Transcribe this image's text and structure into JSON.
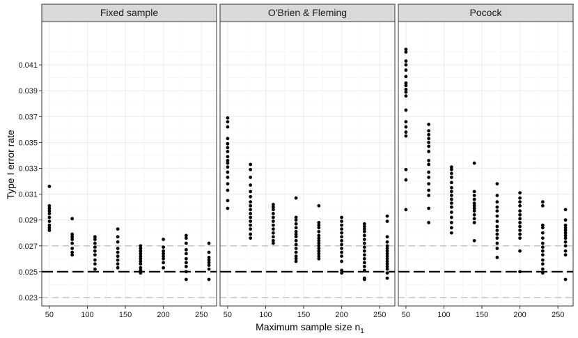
{
  "chart_data": {
    "type": "scatter",
    "facet_titles": [
      "Fixed sample",
      "O'Brien & Fleming",
      "Pocock"
    ],
    "xlabel": "Maximum sample size n",
    "xlabel_subscript": "1",
    "ylabel": "Type I error rate",
    "xlim": [
      40,
      270
    ],
    "ylim": [
      0.02235,
      0.04435
    ],
    "x_ticks": [
      50,
      100,
      150,
      200,
      250
    ],
    "y_ticks": [
      0.023,
      0.025,
      0.027,
      0.029,
      0.031,
      0.033,
      0.035,
      0.037,
      0.039,
      0.041
    ],
    "y_tick_labels": [
      "0.023",
      "0.025",
      "0.027",
      "0.029",
      "0.031",
      "0.033",
      "0.035",
      "0.037",
      "0.039",
      "0.041"
    ],
    "reference_lines": [
      {
        "y": 0.025,
        "style": "dashed",
        "color": "#000000"
      },
      {
        "y": 0.023,
        "style": "dashed",
        "color": "#c8c8c8"
      },
      {
        "y": 0.027,
        "style": "dashed",
        "color": "#c8c8c8"
      }
    ],
    "grid": true,
    "colors": {
      "points": "#000000",
      "strip": "#d9d9d9",
      "panel_border": "#333333",
      "grid": "#ebebeb"
    },
    "panels": [
      {
        "title": "Fixed sample",
        "points": [
          {
            "x": 50,
            "y": [
              0.0316,
              0.0301,
              0.0299,
              0.0297,
              0.0295,
              0.0292,
              0.0289,
              0.0286,
              0.0284,
              0.0282
            ]
          },
          {
            "x": 80,
            "y": [
              0.0291,
              0.0279,
              0.0277,
              0.0275,
              0.0272,
              0.0268,
              0.0265,
              0.0263
            ]
          },
          {
            "x": 110,
            "y": [
              0.0277,
              0.0275,
              0.0272,
              0.0269,
              0.0266,
              0.0263,
              0.0259,
              0.0256,
              0.0252
            ]
          },
          {
            "x": 140,
            "y": [
              0.0283,
              0.0277,
              0.0273,
              0.0268,
              0.0265,
              0.0262,
              0.0259,
              0.0256,
              0.0253
            ]
          },
          {
            "x": 170,
            "y": [
              0.027,
              0.0268,
              0.0266,
              0.0264,
              0.0262,
              0.026,
              0.0258,
              0.0256,
              0.0253,
              0.0251,
              0.0249
            ]
          },
          {
            "x": 200,
            "y": [
              0.0275,
              0.0269,
              0.0266,
              0.0264,
              0.0262,
              0.026,
              0.0257,
              0.0253
            ]
          },
          {
            "x": 230,
            "y": [
              0.0278,
              0.0276,
              0.0272,
              0.0267,
              0.0264,
              0.026,
              0.0257,
              0.0254,
              0.025,
              0.0244
            ]
          },
          {
            "x": 260,
            "y": [
              0.0272,
              0.0265,
              0.0261,
              0.0259,
              0.0257,
              0.0255,
              0.0252,
              0.0244
            ]
          }
        ]
      },
      {
        "title": "O'Brien & Fleming",
        "points": [
          {
            "x": 50,
            "y": [
              0.0369,
              0.0366,
              0.0362,
              0.0353,
              0.0349,
              0.0346,
              0.0343,
              0.0339,
              0.0336,
              0.0334,
              0.0331,
              0.0327,
              0.0323,
              0.0318,
              0.0313,
              0.0305,
              0.0299
            ]
          },
          {
            "x": 80,
            "y": [
              0.0333,
              0.0329,
              0.0323,
              0.0317,
              0.0312,
              0.0308,
              0.0304,
              0.0301,
              0.0298,
              0.0295,
              0.0292,
              0.0289,
              0.0286,
              0.0283,
              0.0279,
              0.0276
            ]
          },
          {
            "x": 110,
            "y": [
              0.0302,
              0.03,
              0.0298,
              0.0295,
              0.0292,
              0.0289,
              0.0286,
              0.0283,
              0.028,
              0.0277,
              0.0274,
              0.0272
            ]
          },
          {
            "x": 140,
            "y": [
              0.0307,
              0.0292,
              0.029,
              0.0287,
              0.0284,
              0.0281,
              0.0279,
              0.0277,
              0.0274,
              0.0271,
              0.0268,
              0.0265,
              0.0262,
              0.026,
              0.0258
            ]
          },
          {
            "x": 170,
            "y": [
              0.0301,
              0.0288,
              0.0286,
              0.0284,
              0.0281,
              0.0278,
              0.0276,
              0.0274,
              0.0272,
              0.027,
              0.0268,
              0.0266,
              0.0264,
              0.0262,
              0.026
            ]
          },
          {
            "x": 200,
            "y": [
              0.0292,
              0.0289,
              0.0286,
              0.0283,
              0.028,
              0.0277,
              0.0274,
              0.0271,
              0.0268,
              0.0265,
              0.0262,
              0.0258,
              0.0251,
              0.0249
            ]
          },
          {
            "x": 230,
            "y": [
              0.0287,
              0.0285,
              0.0283,
              0.0281,
              0.0278,
              0.0275,
              0.0272,
              0.0269,
              0.0266,
              0.0263,
              0.026,
              0.0257,
              0.0254,
              0.0251,
              0.0245,
              0.0244
            ]
          },
          {
            "x": 260,
            "y": [
              0.0293,
              0.0289,
              0.0277,
              0.0273,
              0.027,
              0.0268,
              0.0266,
              0.0264,
              0.0262,
              0.026,
              0.0258,
              0.0256,
              0.0254,
              0.0252,
              0.0249,
              0.0245
            ]
          }
        ]
      },
      {
        "title": "Pocock",
        "points": [
          {
            "x": 50,
            "y": [
              0.0422,
              0.042,
              0.0413,
              0.041,
              0.0406,
              0.0401,
              0.0396,
              0.0394,
              0.0391,
              0.0389,
              0.0386,
              0.0375,
              0.0366,
              0.0362,
              0.0358,
              0.0355,
              0.0329,
              0.0321,
              0.0298
            ]
          },
          {
            "x": 80,
            "y": [
              0.0364,
              0.0359,
              0.0356,
              0.0353,
              0.035,
              0.0347,
              0.0343,
              0.0336,
              0.0333,
              0.0327,
              0.0323,
              0.0318,
              0.0313,
              0.0309,
              0.0299,
              0.0288
            ]
          },
          {
            "x": 110,
            "y": [
              0.0331,
              0.0329,
              0.0326,
              0.0323,
              0.0319,
              0.0315,
              0.0312,
              0.0309,
              0.0306,
              0.0303,
              0.03,
              0.0296,
              0.0292,
              0.0288,
              0.0284,
              0.028
            ]
          },
          {
            "x": 140,
            "y": [
              0.0334,
              0.0312,
              0.0309,
              0.0306,
              0.0303,
              0.0301,
              0.0299,
              0.0297,
              0.0294,
              0.0291,
              0.0288,
              0.0274
            ]
          },
          {
            "x": 170,
            "y": [
              0.0318,
              0.0309,
              0.0304,
              0.03,
              0.0297,
              0.0293,
              0.0289,
              0.0285,
              0.0282,
              0.0279,
              0.0276,
              0.0272,
              0.0268,
              0.0261
            ]
          },
          {
            "x": 200,
            "y": [
              0.0311,
              0.0307,
              0.0304,
              0.0301,
              0.0297,
              0.0294,
              0.0291,
              0.0288,
              0.0285,
              0.0282,
              0.0279,
              0.0276,
              0.0266,
              0.025
            ]
          },
          {
            "x": 230,
            "y": [
              0.0304,
              0.0301,
              0.0286,
              0.0284,
              0.028,
              0.0276,
              0.0272,
              0.0269,
              0.0266,
              0.0263,
              0.0259,
              0.0256,
              0.0252,
              0.0249
            ]
          },
          {
            "x": 260,
            "y": [
              0.0298,
              0.029,
              0.0286,
              0.0284,
              0.0282,
              0.028,
              0.0278,
              0.0276,
              0.0273,
              0.027,
              0.0266,
              0.0263,
              0.0244
            ]
          }
        ]
      }
    ]
  }
}
